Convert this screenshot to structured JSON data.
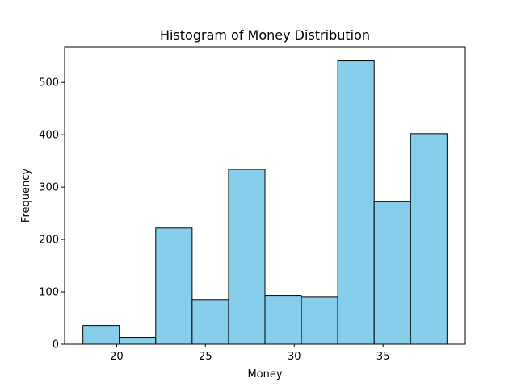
{
  "chart_data": {
    "type": "bar",
    "title": "Histogram of Money Distribution",
    "xlabel": "Money",
    "ylabel": "Frequency",
    "bins": [
      {
        "start": 18.1,
        "end": 20.15,
        "count": 36
      },
      {
        "start": 20.15,
        "end": 22.2,
        "count": 13
      },
      {
        "start": 22.2,
        "end": 24.25,
        "count": 222
      },
      {
        "start": 24.25,
        "end": 26.3,
        "count": 85
      },
      {
        "start": 26.3,
        "end": 28.35,
        "count": 334
      },
      {
        "start": 28.35,
        "end": 30.4,
        "count": 93
      },
      {
        "start": 30.4,
        "end": 32.45,
        "count": 91
      },
      {
        "start": 32.45,
        "end": 34.5,
        "count": 541
      },
      {
        "start": 34.5,
        "end": 36.55,
        "count": 273
      },
      {
        "start": 36.55,
        "end": 38.6,
        "count": 402
      }
    ],
    "xlim": [
      17.07,
      39.63
    ],
    "ylim": [
      0,
      568
    ],
    "xticks": [
      20,
      25,
      30,
      35
    ],
    "yticks": [
      0,
      100,
      200,
      300,
      400,
      500
    ],
    "bar_color": "#87CEEB",
    "edge_color": "#000000",
    "grid": false
  }
}
